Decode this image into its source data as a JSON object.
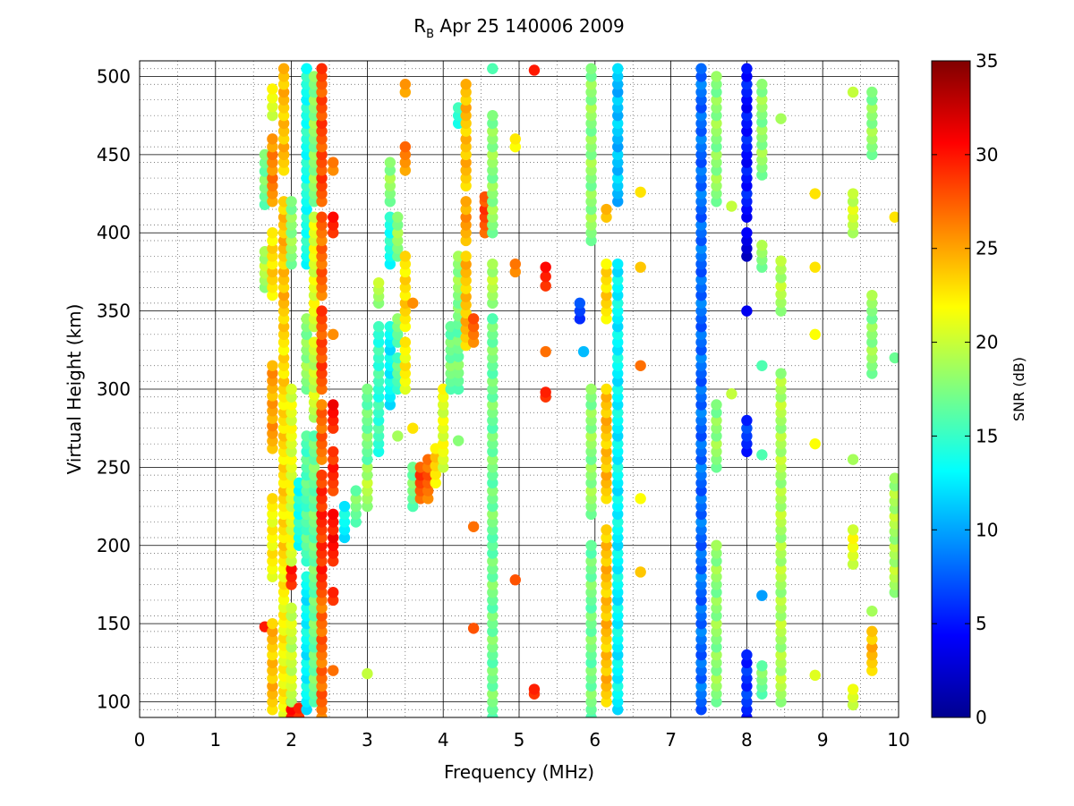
{
  "chart_data": {
    "type": "scatter",
    "title_main": "R",
    "title_sub": "B",
    "title_rest": " Apr 25 140006 2009",
    "xlabel": "Frequency (MHz)",
    "ylabel": "Virtual Height (km)",
    "xlim": [
      0,
      10
    ],
    "ylim": [
      90,
      510
    ],
    "x_ticks": [
      "0",
      "1",
      "2",
      "3",
      "4",
      "5",
      "6",
      "7",
      "8",
      "9",
      "10"
    ],
    "y_ticks": [
      "100",
      "150",
      "200",
      "250",
      "300",
      "350",
      "400",
      "450",
      "500"
    ],
    "x_tick_values": [
      0,
      1,
      2,
      3,
      4,
      5,
      6,
      7,
      8,
      9,
      10
    ],
    "y_tick_values": [
      100,
      150,
      200,
      250,
      300,
      350,
      400,
      450,
      500
    ],
    "grid": "on (major solid, minor dotted)",
    "colorbar": {
      "label": "SNR (dB)",
      "colormap": "jet",
      "range": [
        0,
        35
      ],
      "ticks": [
        "0",
        "5",
        "10",
        "15",
        "20",
        "25",
        "30",
        "35"
      ],
      "tick_values": [
        0,
        5,
        10,
        15,
        20,
        25,
        30,
        35
      ]
    },
    "colormap_stops": [
      "#00008f",
      "#0000ff",
      "#00ffff",
      "#ffff00",
      "#ff0000",
      "#800000"
    ],
    "columns": [
      {
        "x": 1.65,
        "segments": [
          [
            418,
            450,
            17
          ],
          [
            365,
            388,
            19
          ],
          [
            148,
            150,
            31
          ]
        ]
      },
      {
        "x": 1.75,
        "segments": [
          [
            95,
            150,
            24
          ],
          [
            180,
            230,
            22
          ],
          [
            262,
            315,
            25
          ],
          [
            360,
            400,
            23
          ],
          [
            420,
            460,
            26
          ],
          [
            475,
            492,
            21
          ]
        ]
      },
      {
        "x": 1.9,
        "segments": [
          [
            92,
            180,
            22
          ],
          [
            185,
            340,
            23
          ],
          [
            345,
            420,
            24
          ],
          [
            440,
            505,
            24
          ]
        ]
      },
      {
        "x": 2.0,
        "segments": [
          [
            90,
            100,
            31
          ],
          [
            100,
            160,
            20
          ],
          [
            175,
            185,
            30
          ],
          [
            190,
            300,
            21
          ],
          [
            380,
            420,
            18
          ]
        ]
      },
      {
        "x": 2.1,
        "segments": [
          [
            90,
            96,
            30
          ],
          [
            200,
            240,
            14
          ]
        ]
      },
      {
        "x": 2.2,
        "segments": [
          [
            95,
            180,
            13
          ],
          [
            190,
            270,
            16
          ],
          [
            300,
            345,
            18
          ],
          [
            380,
            505,
            14
          ]
        ]
      },
      {
        "x": 2.3,
        "segments": [
          [
            100,
            230,
            17
          ],
          [
            235,
            270,
            17
          ],
          [
            282,
            330,
            20
          ],
          [
            340,
            410,
            21
          ],
          [
            420,
            500,
            18
          ]
        ]
      },
      {
        "x": 2.4,
        "segments": [
          [
            90,
            165,
            27
          ],
          [
            170,
            245,
            29
          ],
          [
            255,
            290,
            27
          ],
          [
            300,
            350,
            28
          ],
          [
            360,
            410,
            27
          ],
          [
            420,
            505,
            28
          ]
        ]
      },
      {
        "x": 2.55,
        "segments": [
          [
            120,
            120,
            28
          ],
          [
            165,
            170,
            30
          ],
          [
            190,
            220,
            30
          ],
          [
            235,
            260,
            29
          ],
          [
            275,
            290,
            30
          ],
          [
            335,
            335,
            27
          ],
          [
            400,
            410,
            30
          ],
          [
            440,
            445,
            27
          ]
        ]
      },
      {
        "x": 2.7,
        "segments": [
          [
            205,
            225,
            13
          ]
        ]
      },
      {
        "x": 2.85,
        "segments": [
          [
            215,
            235,
            17
          ]
        ]
      },
      {
        "x": 3.0,
        "segments": [
          [
            118,
            118,
            21
          ],
          [
            225,
            250,
            19
          ],
          [
            255,
            300,
            17
          ]
        ]
      },
      {
        "x": 3.15,
        "segments": [
          [
            260,
            340,
            15
          ],
          [
            355,
            368,
            19
          ]
        ]
      },
      {
        "x": 3.3,
        "segments": [
          [
            290,
            340,
            13
          ],
          [
            380,
            410,
            14
          ],
          [
            420,
            445,
            18
          ]
        ]
      },
      {
        "x": 3.4,
        "segments": [
          [
            270,
            270,
            20
          ],
          [
            300,
            320,
            16
          ],
          [
            330,
            345,
            17
          ],
          [
            385,
            410,
            18
          ]
        ]
      },
      {
        "x": 3.5,
        "segments": [
          [
            300,
            330,
            22
          ],
          [
            340,
            385,
            23
          ],
          [
            440,
            455,
            26
          ],
          [
            490,
            495,
            26
          ]
        ]
      },
      {
        "x": 3.6,
        "segments": [
          [
            225,
            250,
            17
          ],
          [
            275,
            275,
            24
          ],
          [
            355,
            355,
            27
          ]
        ]
      },
      {
        "x": 3.7,
        "segments": [
          [
            230,
            250,
            28
          ]
        ]
      },
      {
        "x": 3.8,
        "segments": [
          [
            230,
            255,
            27
          ]
        ]
      },
      {
        "x": 3.9,
        "segments": [
          [
            240,
            262,
            23
          ]
        ]
      },
      {
        "x": 4.0,
        "segments": [
          [
            250,
            300,
            21
          ]
        ]
      },
      {
        "x": 4.1,
        "segments": [
          [
            300,
            340,
            17
          ]
        ]
      },
      {
        "x": 4.2,
        "segments": [
          [
            267,
            267,
            19
          ],
          [
            300,
            352,
            17
          ],
          [
            355,
            385,
            18
          ],
          [
            470,
            480,
            15
          ]
        ]
      },
      {
        "x": 4.3,
        "segments": [
          [
            328,
            385,
            24
          ],
          [
            395,
            420,
            25
          ],
          [
            430,
            495,
            24
          ]
        ]
      },
      {
        "x": 4.4,
        "segments": [
          [
            147,
            147,
            29
          ],
          [
            212,
            212,
            28
          ],
          [
            330,
            345,
            27
          ]
        ]
      },
      {
        "x": 4.55,
        "segments": [
          [
            400,
            420,
            28
          ],
          [
            423,
            423,
            29
          ]
        ]
      },
      {
        "x": 4.65,
        "segments": [
          [
            90,
            200,
            17
          ],
          [
            205,
            345,
            17
          ],
          [
            355,
            380,
            19
          ],
          [
            400,
            475,
            18
          ],
          [
            505,
            505,
            17
          ]
        ]
      },
      {
        "x": 4.95,
        "segments": [
          [
            178,
            178,
            29
          ],
          [
            375,
            380,
            27
          ],
          [
            455,
            460,
            23
          ]
        ]
      },
      {
        "x": 5.2,
        "segments": [
          [
            105,
            108,
            30
          ],
          [
            504,
            504,
            31
          ]
        ]
      },
      {
        "x": 5.35,
        "segments": [
          [
            295,
            298,
            30
          ],
          [
            324,
            324,
            28
          ],
          [
            366,
            378,
            30
          ]
        ]
      },
      {
        "x": 5.8,
        "segments": [
          [
            345,
            355,
            7
          ]
        ]
      },
      {
        "x": 5.85,
        "segments": [
          [
            324,
            324,
            12
          ]
        ]
      },
      {
        "x": 5.95,
        "segments": [
          [
            90,
            200,
            17
          ],
          [
            220,
            300,
            18
          ],
          [
            395,
            505,
            18
          ]
        ]
      },
      {
        "x": 6.15,
        "segments": [
          [
            100,
            210,
            24
          ],
          [
            230,
            300,
            24
          ],
          [
            345,
            380,
            23
          ],
          [
            410,
            415,
            25
          ]
        ]
      },
      {
        "x": 6.3,
        "segments": [
          [
            95,
            380,
            13
          ],
          [
            420,
            505,
            11
          ]
        ]
      },
      {
        "x": 6.6,
        "segments": [
          [
            183,
            183,
            25
          ],
          [
            230,
            230,
            23
          ],
          [
            315,
            315,
            28
          ],
          [
            378,
            378,
            25
          ],
          [
            426,
            426,
            24
          ]
        ]
      },
      {
        "x": 7.4,
        "segments": [
          [
            95,
            505,
            8
          ]
        ]
      },
      {
        "x": 7.6,
        "segments": [
          [
            100,
            200,
            18
          ],
          [
            250,
            290,
            18
          ],
          [
            420,
            500,
            18
          ]
        ]
      },
      {
        "x": 7.8,
        "segments": [
          [
            297,
            297,
            21
          ],
          [
            417,
            417,
            21
          ]
        ]
      },
      {
        "x": 8.0,
        "segments": [
          [
            90,
            130,
            6
          ],
          [
            260,
            280,
            6
          ],
          [
            350,
            352,
            5
          ],
          [
            385,
            400,
            3
          ],
          [
            410,
            505,
            5
          ]
        ]
      },
      {
        "x": 8.2,
        "segments": [
          [
            105,
            123,
            17
          ],
          [
            168,
            168,
            11
          ],
          [
            258,
            258,
            17
          ],
          [
            315,
            317,
            17
          ],
          [
            378,
            392,
            18
          ],
          [
            437,
            495,
            18
          ]
        ]
      },
      {
        "x": 8.45,
        "segments": [
          [
            100,
            310,
            19
          ],
          [
            350,
            382,
            19
          ],
          [
            473,
            473,
            20
          ]
        ]
      },
      {
        "x": 8.9,
        "segments": [
          [
            117,
            117,
            22
          ],
          [
            265,
            265,
            23
          ],
          [
            335,
            335,
            23
          ],
          [
            378,
            378,
            24
          ],
          [
            425,
            425,
            24
          ]
        ]
      },
      {
        "x": 9.4,
        "segments": [
          [
            98,
            108,
            21
          ],
          [
            188,
            210,
            21
          ],
          [
            255,
            255,
            20
          ],
          [
            400,
            425,
            20
          ],
          [
            490,
            490,
            21
          ]
        ]
      },
      {
        "x": 9.65,
        "segments": [
          [
            120,
            145,
            24
          ],
          [
            158,
            158,
            20
          ],
          [
            310,
            360,
            18
          ],
          [
            450,
            490,
            18
          ]
        ]
      },
      {
        "x": 9.95,
        "segments": [
          [
            170,
            243,
            19
          ],
          [
            320,
            320,
            18
          ],
          [
            410,
            410,
            24
          ]
        ]
      }
    ]
  }
}
